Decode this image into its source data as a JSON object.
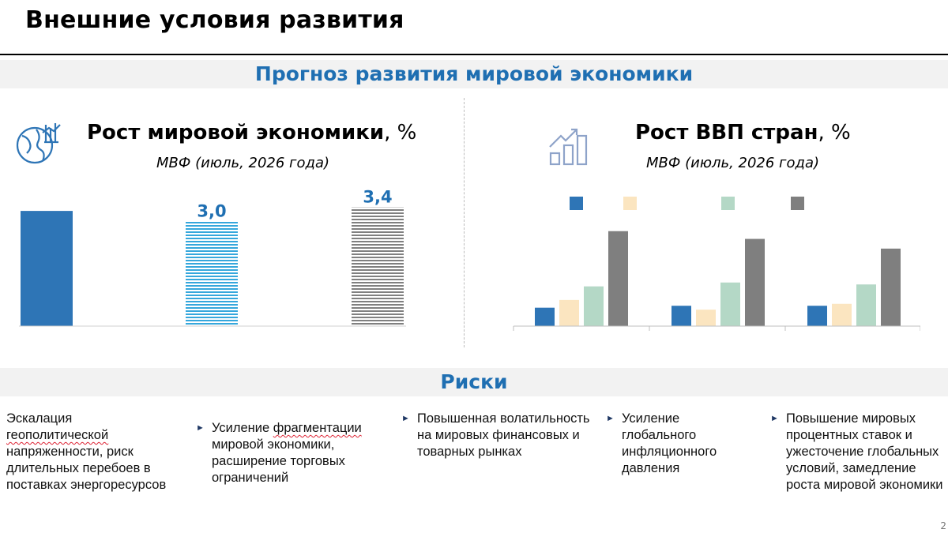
{
  "slide": {
    "title": "Внешние условия развития",
    "page_number": "2"
  },
  "forecast_section": {
    "title": "Прогноз развития мировой экономики"
  },
  "left_panel": {
    "icon": "globe-growth-icon",
    "title": "Рост мировой экономики",
    "title_unit": ", %",
    "subtitle_source": "МВФ",
    "subtitle_note": " (июль, 2026 года)"
  },
  "right_panel": {
    "icon": "bar-chart-growth-icon",
    "title": "Рост ВВП стран",
    "title_unit": ", %",
    "subtitle_source": "МВФ",
    "subtitle_note": " (июль, 2026 года)"
  },
  "risks_section": {
    "title": "Риски",
    "items": [
      {
        "pre": "Эскалация ",
        "underlined": "геополитической",
        "post": " напряженности, риск длительных перебоев в поставках энергоресурсов",
        "arrow": false
      },
      {
        "pre": "Усиление ",
        "underlined": "фрагментации",
        "post": " мировой экономики, расширение торговых ограничений",
        "arrow": true
      },
      {
        "pre": "Повышенная волатильность на мировых финансовых и товарных рынках",
        "underlined": "",
        "post": "",
        "arrow": true
      },
      {
        "pre": "Усиление глобального инфляционного давления",
        "underlined": "",
        "post": "",
        "arrow": true
      },
      {
        "pre": "Повышение мировых процентных ставок и ужесточение глобальных условий, замедление роста мировой экономики",
        "underlined": "",
        "post": "",
        "arrow": true
      }
    ]
  },
  "colors": {
    "band_text": "#1f6fb2",
    "series_blue": "#2e75b6",
    "series_peach": "#fbe5c0",
    "series_mint": "#b4d8c6",
    "series_gray": "#7f7f7f",
    "hatch_blue": "#35a7dc",
    "hatch_gray": "#808080"
  },
  "chart_data": [
    {
      "type": "bar",
      "title": "Рост мировой экономики, %",
      "categories": [
        "",
        "",
        ""
      ],
      "values": [
        3.3,
        3.0,
        3.4
      ],
      "value_labels": [
        "",
        "3,0",
        "3,4"
      ],
      "bar_styles": [
        "solid-blue",
        "hatched-blue",
        "hatched-gray"
      ],
      "ylim": [
        0,
        3.8
      ],
      "grid": false,
      "legend": "none"
    },
    {
      "type": "bar",
      "title": "Рост ВВП стран, %",
      "categories": [
        "",
        "",
        ""
      ],
      "series": [
        {
          "values": [
            1.9,
            2.1,
            2.1
          ]
        },
        {
          "values": [
            2.7,
            1.7,
            2.3
          ]
        },
        {
          "values": [
            4.1,
            4.5,
            4.3
          ]
        },
        {
          "values": [
            9.8,
            9.0,
            8.0
          ]
        }
      ],
      "ylim": [
        0,
        11
      ],
      "grid": false,
      "legend": "top"
    }
  ]
}
